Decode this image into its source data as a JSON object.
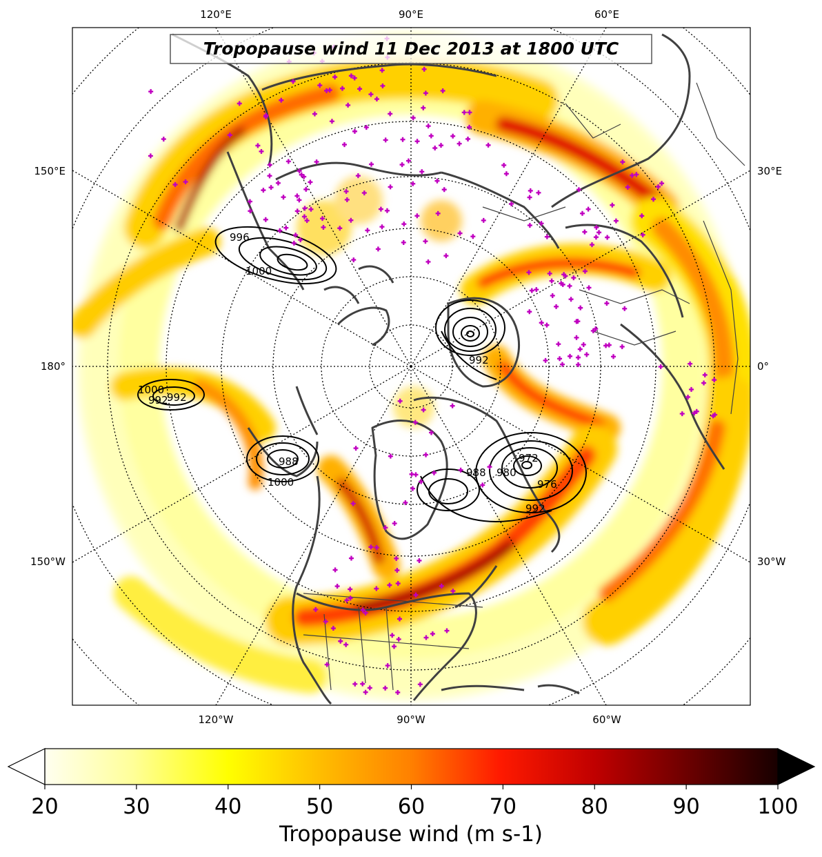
{
  "title": "Tropopause wind 11 Dec 2013 at 1800 UTC",
  "longitude_labels": {
    "top": [
      "120°E",
      "90°E",
      "60°E"
    ],
    "bottom": [
      "120°W",
      "90°W",
      "60°W"
    ],
    "left": [
      "150°E",
      "180°",
      "150°W"
    ],
    "right": [
      "30°E",
      "0°",
      "30°W"
    ]
  },
  "pressure_contour_labels": [
    "996",
    "1000",
    "992",
    "1000",
    "992",
    "988",
    "1000",
    "992",
    "988",
    "980",
    "972",
    "976",
    "992"
  ],
  "colorbar": {
    "label": "Tropopause wind (m s-1)",
    "ticks": [
      "20",
      "30",
      "40",
      "50",
      "60",
      "70",
      "80",
      "90",
      "100"
    ],
    "range": [
      20,
      100
    ],
    "extend": "both",
    "colormap": "hot_r"
  },
  "colors": {
    "coast": "#404040",
    "observation_marker": "#c000c0",
    "contour": "#000000",
    "jet_core": "#8b0000"
  },
  "legend": {}
}
